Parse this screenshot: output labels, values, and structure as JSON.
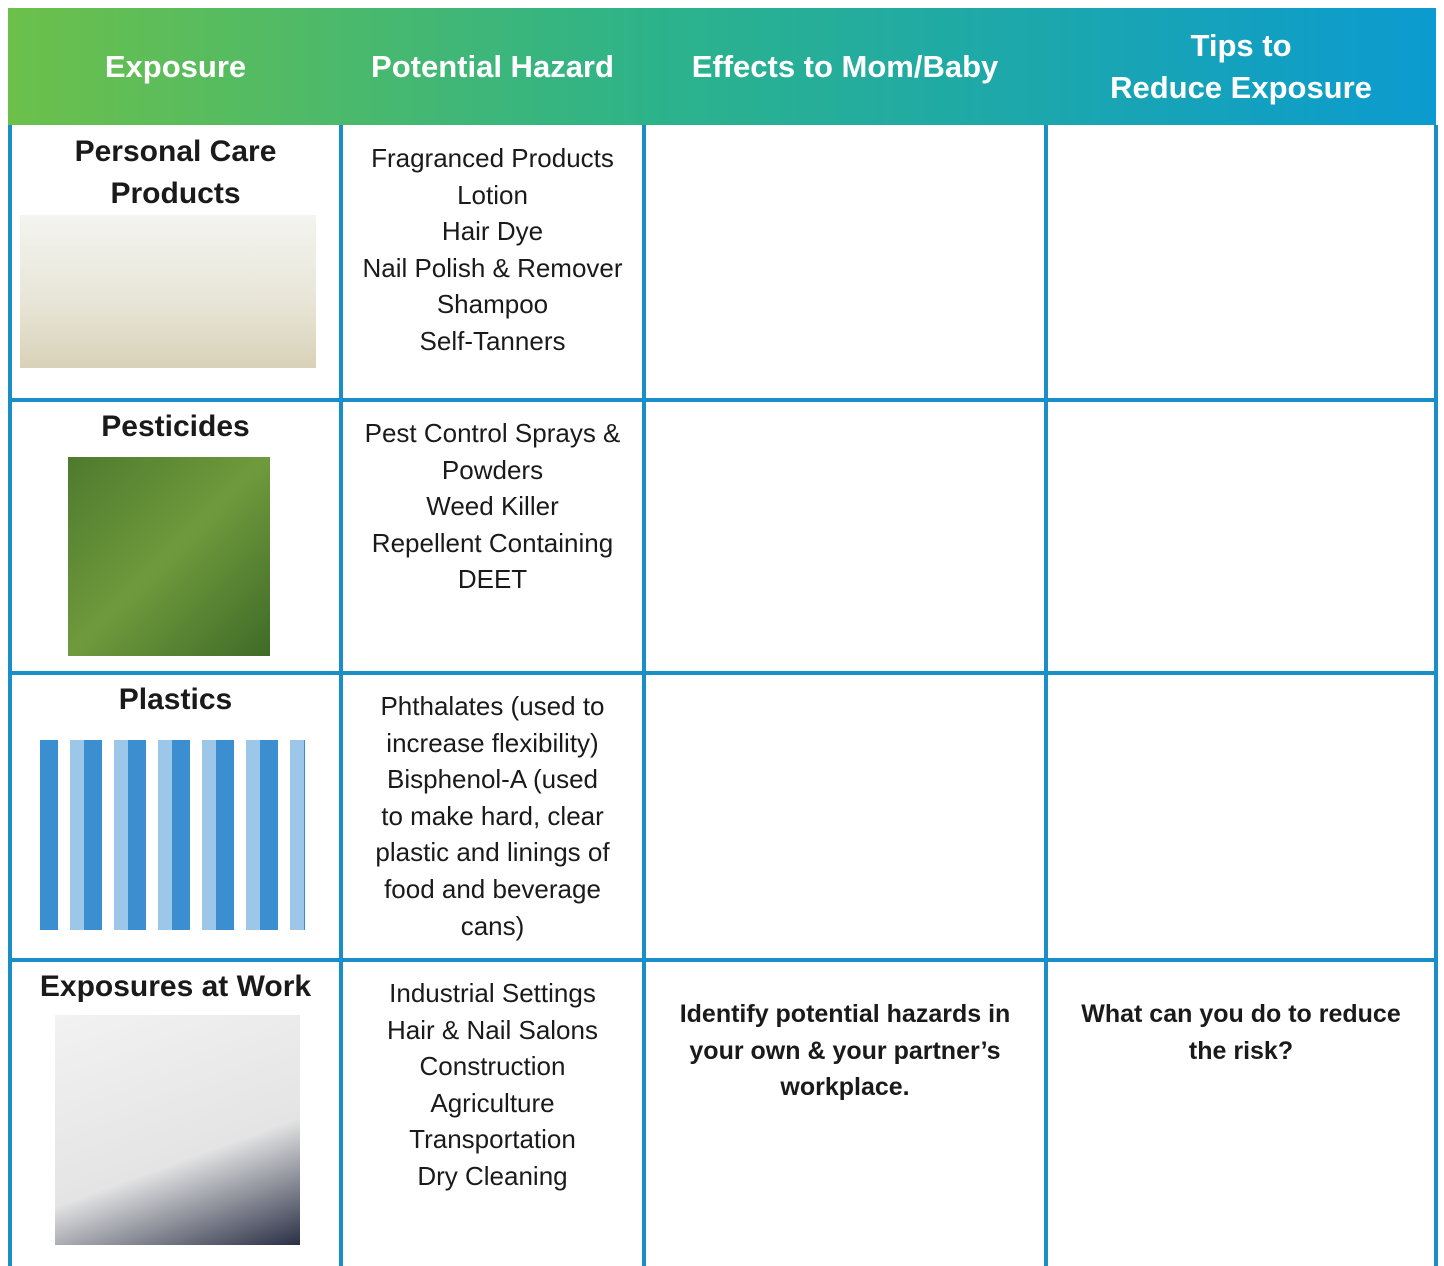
{
  "header": {
    "columns": [
      [
        "Exposure"
      ],
      [
        "Potential Hazard"
      ],
      [
        "Effects to Mom/Baby"
      ],
      [
        "Tips to",
        "Reduce Exposure"
      ]
    ]
  },
  "table": {
    "rows": [
      {
        "exposure": [
          "Personal Care",
          "Products"
        ],
        "hazards": [
          "Fragranced Products",
          "Lotion",
          "Hair Dye",
          "Nail Polish & Remover",
          "Shampoo",
          "Self-Tanners"
        ]
      },
      {
        "exposure": [
          "Pesticides"
        ],
        "hazards": [
          "Pest Control Sprays &",
          "Powders",
          "Weed Killer",
          "Repellent Containing",
          "DEET"
        ]
      },
      {
        "exposure": [
          "Plastics"
        ],
        "hazards": [
          "Phthalates (used to",
          "increase flexibility)",
          "Bisphenol-A (used",
          "to make hard, clear",
          "plastic and linings of",
          "food and beverage",
          "cans)"
        ]
      },
      {
        "exposure": [
          "Exposures at Work"
        ],
        "hazards": [
          "Industrial Settings",
          "Hair & Nail Salons",
          "Construction",
          "Agriculture",
          "Transportation",
          "Dry Cleaning"
        ],
        "effects": [
          "Identify potential hazards in",
          "your own & your partner’s",
          "workplace."
        ],
        "tips": [
          "What can you do to reduce",
          "the risk?"
        ]
      }
    ]
  }
}
